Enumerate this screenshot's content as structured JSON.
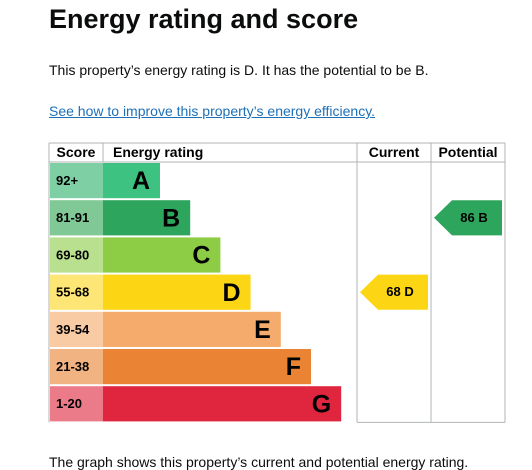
{
  "header": {
    "title": "Energy rating and score"
  },
  "intro": "This property’s energy rating is D. It has the potential to be B.",
  "link": "See how to improve this property’s energy efficiency.",
  "table": {
    "columns": [
      "Score",
      "Energy rating",
      "Current",
      "Potential"
    ],
    "bands": [
      {
        "score": "92+",
        "letter": "A",
        "color": "#3dc282",
        "light": "#7fcfa5"
      },
      {
        "score": "81-91",
        "letter": "B",
        "color": "#2ea55c",
        "light": "#80c895"
      },
      {
        "score": "69-80",
        "letter": "C",
        "color": "#8dcd46",
        "light": "#b9e08e"
      },
      {
        "score": "55-68",
        "letter": "D",
        "color": "#fcd614",
        "light": "#fde675"
      },
      {
        "score": "39-54",
        "letter": "E",
        "color": "#f4ab6c",
        "light": "#f8cba5"
      },
      {
        "score": "21-38",
        "letter": "F",
        "color": "#ea8333",
        "light": "#f2b382"
      },
      {
        "score": "1-20",
        "letter": "G",
        "color": "#e0263f",
        "light": "#ec7b8a"
      }
    ],
    "current": {
      "score": 68,
      "letter": "D",
      "band": 3
    },
    "potential": {
      "score": 86,
      "letter": "B",
      "band": 1
    }
  },
  "footer": "The graph shows this property’s current and potential energy rating."
}
